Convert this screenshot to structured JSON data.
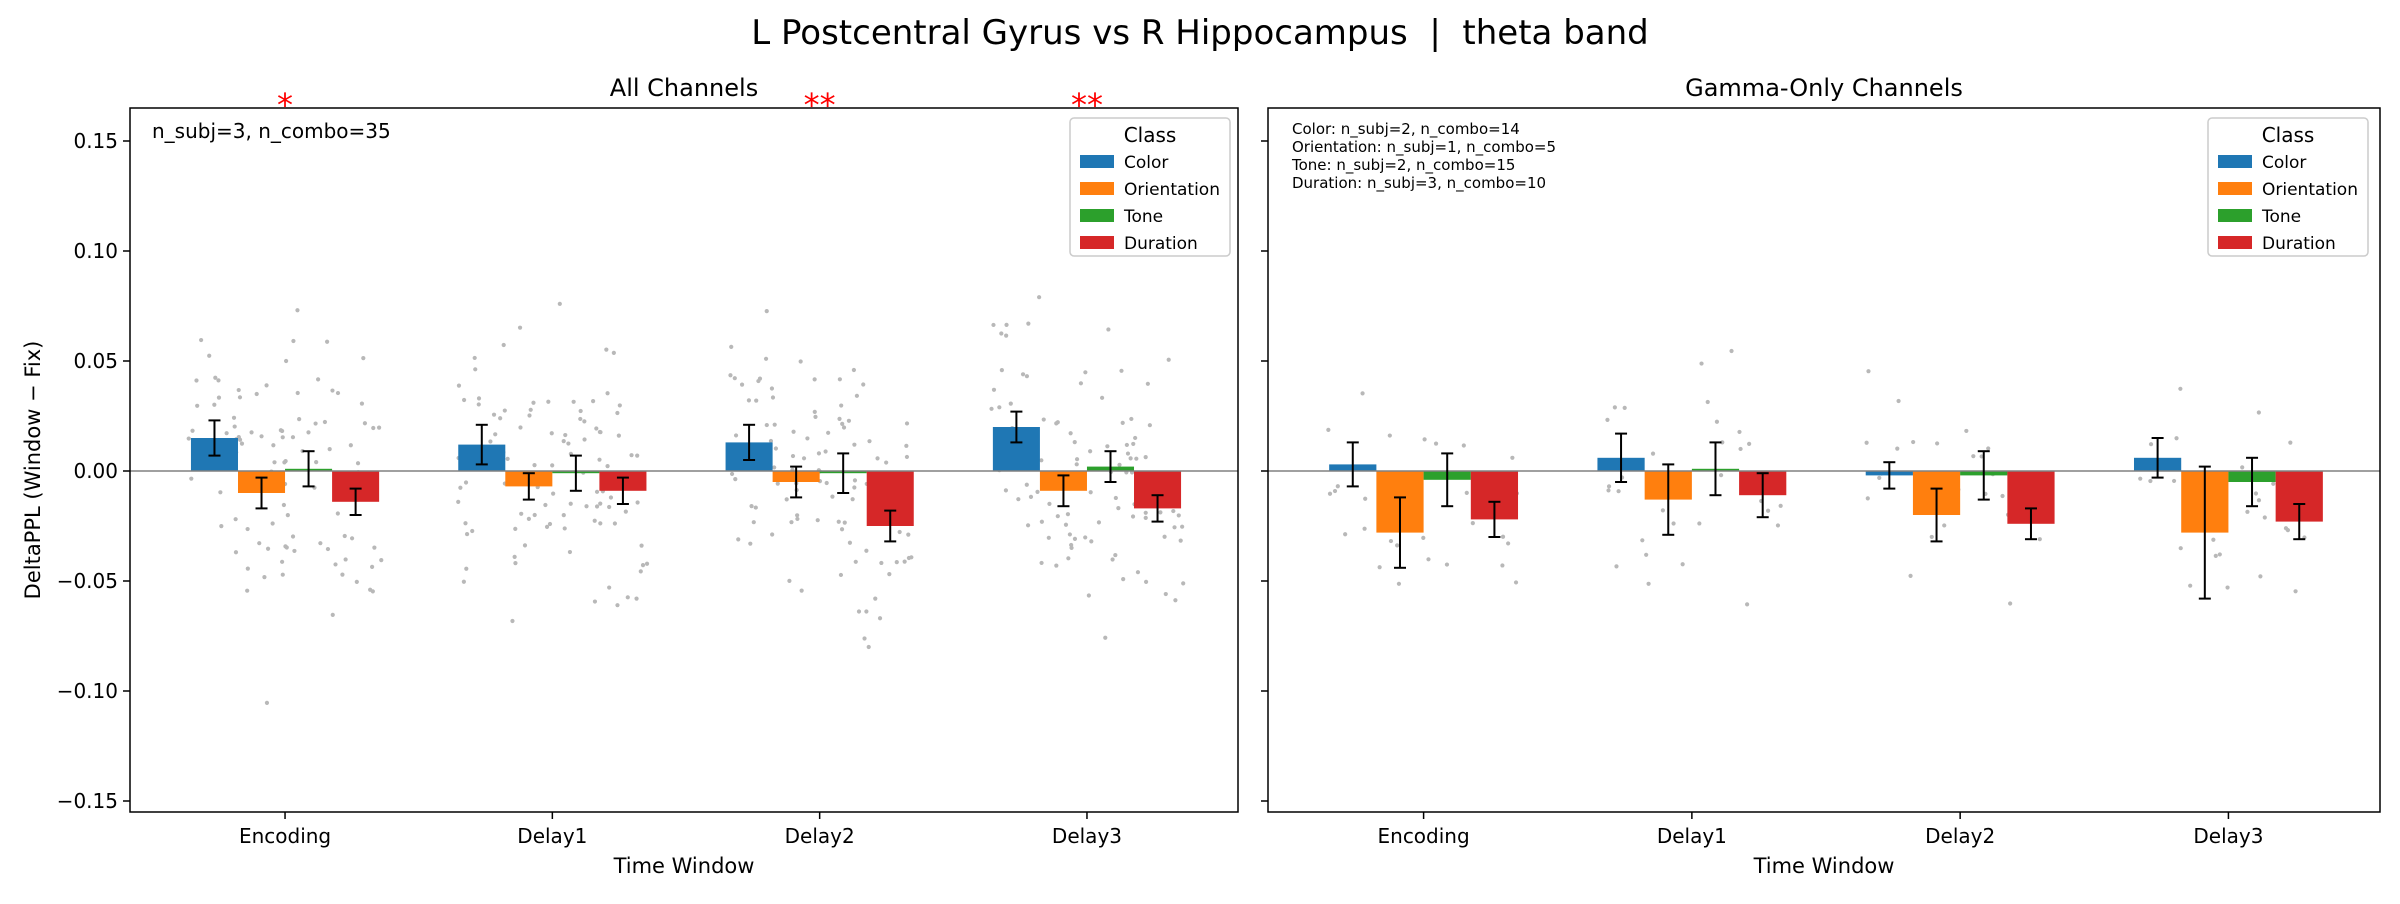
{
  "figure": {
    "title": "L Postcentral Gyrus vs R Hippocampus  |  theta band",
    "ylabel": "DeltaPPL (Window − Fix)",
    "xlabel": "Time Window"
  },
  "legend": {
    "title": "Class",
    "placement": "top-right",
    "entries": [
      "Color",
      "Orientation",
      "Tone",
      "Duration"
    ],
    "colors": [
      "#1f77b4",
      "#ff7f0e",
      "#2ca02c",
      "#d62728"
    ]
  },
  "annotations": {
    "left": "n_subj=3, n_combo=35",
    "right": [
      "Color: n_subj=2, n_combo=14",
      "Orientation: n_subj=1, n_combo=5",
      "Tone: n_subj=2, n_combo=15",
      "Duration: n_subj=3, n_combo=10"
    ]
  },
  "significance": [
    {
      "window": "Encoding",
      "label": "*"
    },
    {
      "window": "Delay2",
      "label": "**"
    },
    {
      "window": "Delay3",
      "label": "**"
    }
  ],
  "chart_data": [
    {
      "type": "bar",
      "title": "All Channels",
      "xlabel": "Time Window",
      "ylabel": "DeltaPPL (Window − Fix)",
      "categories": [
        "Encoding",
        "Delay1",
        "Delay2",
        "Delay3"
      ],
      "ylim": [
        -0.155,
        0.165
      ],
      "yticks": [
        -0.15,
        -0.1,
        -0.05,
        0.0,
        0.05,
        0.1,
        0.15
      ],
      "ytick_labels": [
        "−0.15",
        "−0.10",
        "−0.05",
        "0.00",
        "0.05",
        "0.10",
        "0.15"
      ],
      "zero_line": true,
      "grid": false,
      "series": [
        {
          "name": "Color",
          "values": [
            0.015,
            0.012,
            0.013,
            0.02
          ],
          "err": [
            0.008,
            0.009,
            0.008,
            0.007
          ]
        },
        {
          "name": "Orientation",
          "values": [
            -0.01,
            -0.007,
            -0.005,
            -0.009
          ],
          "err": [
            0.007,
            0.006,
            0.007,
            0.007
          ]
        },
        {
          "name": "Tone",
          "values": [
            0.001,
            -0.001,
            -0.001,
            0.002
          ],
          "err": [
            0.008,
            0.008,
            0.009,
            0.007
          ]
        },
        {
          "name": "Duration",
          "values": [
            -0.014,
            -0.009,
            -0.025,
            -0.017
          ],
          "err": [
            0.006,
            0.006,
            0.007,
            0.006
          ]
        }
      ]
    },
    {
      "type": "bar",
      "title": "Gamma-Only Channels",
      "xlabel": "Time Window",
      "categories": [
        "Encoding",
        "Delay1",
        "Delay2",
        "Delay3"
      ],
      "ylim": [
        -0.155,
        0.165
      ],
      "zero_line": true,
      "grid": false,
      "series": [
        {
          "name": "Color",
          "values": [
            0.003,
            0.006,
            -0.002,
            0.006
          ],
          "err": [
            0.01,
            0.011,
            0.006,
            0.009
          ]
        },
        {
          "name": "Orientation",
          "values": [
            -0.028,
            -0.013,
            -0.02,
            -0.028
          ],
          "err": [
            0.016,
            0.016,
            0.012,
            0.03
          ]
        },
        {
          "name": "Tone",
          "values": [
            -0.004,
            0.001,
            -0.002,
            -0.005
          ],
          "err": [
            0.012,
            0.012,
            0.011,
            0.011
          ]
        },
        {
          "name": "Duration",
          "values": [
            -0.022,
            -0.011,
            -0.024,
            -0.023
          ],
          "err": [
            0.008,
            0.01,
            0.007,
            0.008
          ]
        }
      ]
    }
  ]
}
